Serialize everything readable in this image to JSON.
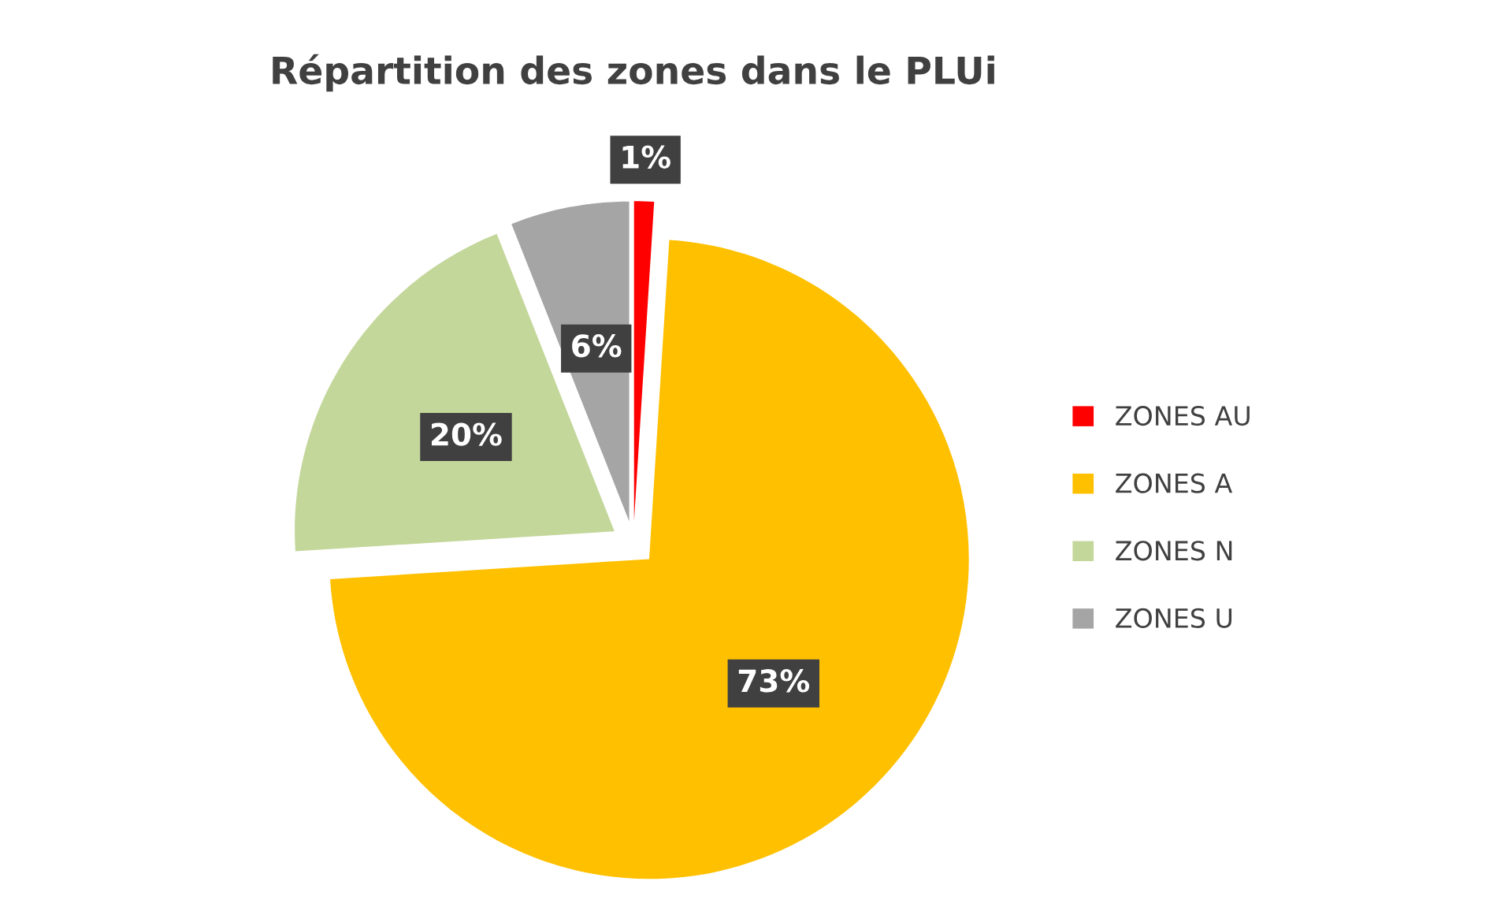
{
  "chart_data": {
    "type": "pie",
    "title": "Répartition des zones dans le PLUi",
    "categories": [
      "ZONES AU",
      "ZONES A",
      "ZONES N",
      "ZONES U"
    ],
    "values": [
      1,
      73,
      20,
      6
    ],
    "colors": [
      "#ff0000",
      "#ffc000",
      "#c4d79b",
      "#a5a5a5"
    ],
    "value_labels": [
      "1%",
      "73%",
      "20%",
      "6%"
    ],
    "legend": "right"
  }
}
